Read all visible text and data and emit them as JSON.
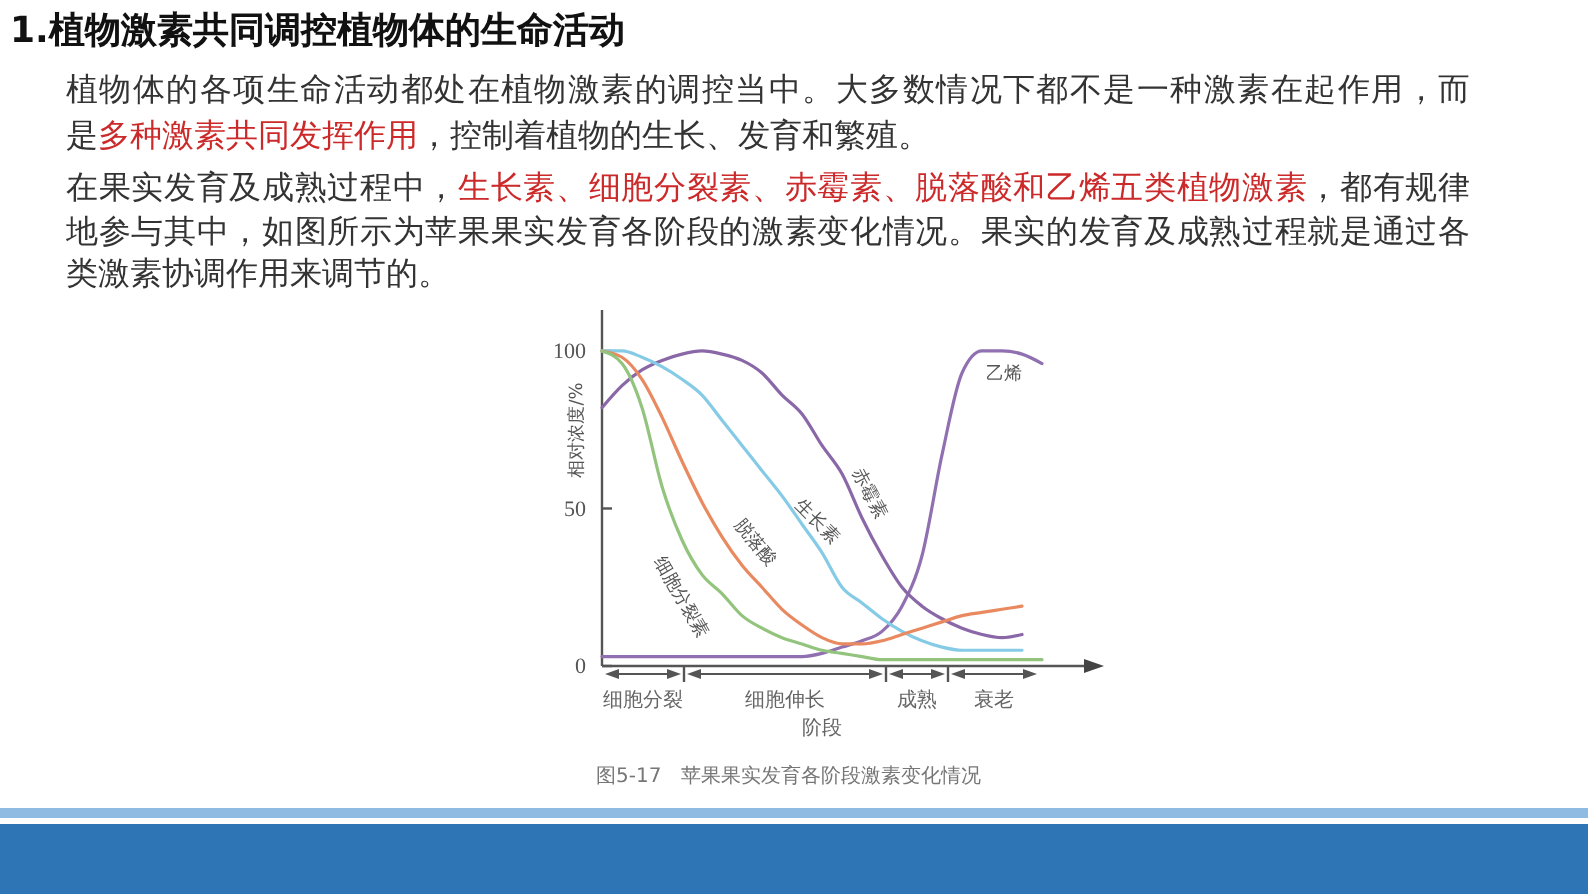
{
  "chart_data": {
    "type": "line",
    "title": "1.植物激素共同调控植物体的生命活动",
    "xlabel": "阶段",
    "ylabel": "相对浓度/%",
    "categories": [
      null,
      null,
      null,
      null,
      null,
      null,
      null,
      null,
      null,
      null,
      null,
      null,
      null,
      null,
      null,
      null,
      null,
      null,
      null,
      null,
      null,
      null,
      null
    ],
    "ylim": [
      0,
      113
    ],
    "yticks": [
      0,
      50,
      100
    ],
    "series": [
      {
        "name": "乙烯",
        "color": "#9070b0",
        "values": [
          3,
          3,
          3,
          3,
          3,
          3,
          3,
          3,
          3,
          3,
          3,
          4,
          6,
          8,
          11,
          19,
          35,
          67,
          93,
          100,
          100,
          99,
          96
        ]
      },
      {
        "name": "赤霉素",
        "color": "#8a68a8",
        "values": [
          82,
          89,
          94,
          97,
          99,
          100,
          99,
          97,
          93,
          86,
          80,
          70,
          61,
          47,
          35,
          25,
          19,
          15,
          12,
          10,
          9,
          10,
          null
        ]
      },
      {
        "name": "生长素",
        "color": "#86cbe6",
        "values": [
          100,
          100,
          98,
          95,
          91,
          86,
          78,
          70,
          62,
          54,
          45,
          36,
          25,
          20,
          15,
          11,
          8,
          6,
          5,
          5,
          5,
          5,
          null
        ]
      },
      {
        "name": "脱落酸",
        "color": "#e9895f",
        "values": [
          100,
          98,
          91,
          79,
          65,
          52,
          41,
          32,
          25,
          18,
          13,
          9,
          7,
          7,
          8,
          10,
          12,
          14,
          16,
          17,
          18,
          19,
          null
        ]
      },
      {
        "name": "细胞分裂素",
        "color": "#93c47d",
        "values": [
          100,
          96,
          82,
          57,
          40,
          29,
          23,
          16,
          12,
          9,
          7,
          5,
          4,
          3,
          2,
          2,
          2,
          2,
          2,
          2,
          2,
          2,
          2
        ]
      }
    ],
    "annotations": [
      "植物体的各项生命活动都处在植物激素的调控当中。大多数情况下都不是一种激素在起作用，而",
      "是",
      "多种激素共同发挥作用",
      "，控制着植物的生长、发育和繁殖。",
      "在果实发育及成熟过程中，",
      "生长素、细胞分裂素、赤霉素、脱落酸和乙烯五类植物激素",
      "，都有规律",
      "地参与其中，如图所示为苹果果实发育各阶段的激素变化情况。果实的发育及成熟过程就是通过各",
      "类激素协调作用来调节的。",
      "细胞分裂",
      "细胞伸长",
      "成熟",
      "衰老",
      "图5-17　苹果果实发育各阶段激素变化情况"
    ]
  }
}
